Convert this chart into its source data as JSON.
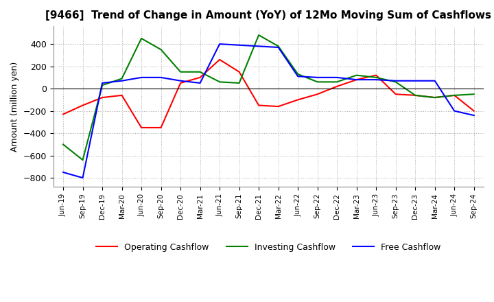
{
  "title": "[9466]  Trend of Change in Amount (YoY) of 12Mo Moving Sum of Cashflows",
  "ylabel": "Amount (million yen)",
  "background_color": "#ffffff",
  "x_labels": [
    "Jun-19",
    "Sep-19",
    "Dec-19",
    "Mar-20",
    "Jun-20",
    "Sep-20",
    "Dec-20",
    "Mar-21",
    "Jun-21",
    "Sep-21",
    "Dec-21",
    "Mar-22",
    "Jun-22",
    "Sep-22",
    "Dec-22",
    "Mar-23",
    "Jun-23",
    "Sep-23",
    "Dec-23",
    "Mar-24",
    "Jun-24",
    "Sep-24"
  ],
  "operating_cashflow": [
    -230,
    -150,
    -80,
    -60,
    -350,
    -350,
    50,
    100,
    260,
    150,
    -150,
    -160,
    -100,
    -50,
    20,
    80,
    120,
    -50,
    -60,
    -80,
    -60,
    -200
  ],
  "investing_cashflow": [
    -500,
    -640,
    30,
    90,
    450,
    350,
    150,
    150,
    60,
    50,
    480,
    380,
    130,
    60,
    60,
    120,
    100,
    60,
    -60,
    -80,
    -60,
    -50
  ],
  "free_cashflow": [
    -750,
    -800,
    50,
    70,
    100,
    100,
    70,
    50,
    400,
    390,
    380,
    370,
    110,
    100,
    100,
    80,
    80,
    70,
    70,
    70,
    -200,
    -240
  ],
  "operating_color": "#ff0000",
  "investing_color": "#008000",
  "free_color": "#0000ff",
  "ylim_min": -880,
  "ylim_max": 560,
  "yticks": [
    -800,
    -600,
    -400,
    -200,
    0,
    200,
    400
  ]
}
